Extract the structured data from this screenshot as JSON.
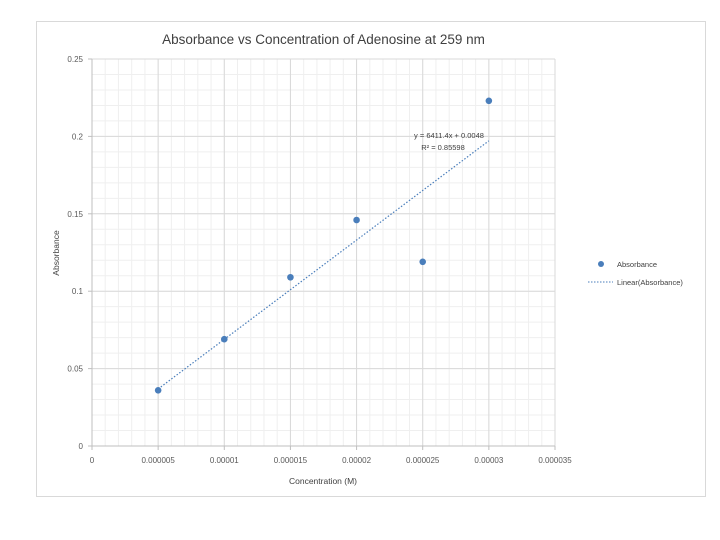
{
  "chart_data": {
    "type": "scatter",
    "title": "Absorbance vs Concentration of Adenosine at 259 nm",
    "xlabel": "Concentration (M)",
    "ylabel": "Absorbance",
    "xlim": [
      0,
      3.5e-05
    ],
    "ylim": [
      0,
      0.25
    ],
    "x_ticks": [
      "0",
      "0.000005",
      "0.00001",
      "0.000015",
      "0.00002",
      "0.000025",
      "0.00003",
      "0.000035"
    ],
    "y_ticks": [
      "0",
      "0.05",
      "0.1",
      "0.15",
      "0.2",
      "0.25"
    ],
    "grid": true,
    "legend_position": "right",
    "series": [
      {
        "name": "Absorbance",
        "color": "#4a7ebb",
        "x": [
          5e-06,
          1e-05,
          1.5e-05,
          2e-05,
          2.5e-05,
          3e-05
        ],
        "y": [
          0.036,
          0.069,
          0.109,
          0.146,
          0.119,
          0.223
        ]
      }
    ],
    "trendline": {
      "name": "Linear(Absorbance)",
      "type": "linear",
      "slope": 6411.4,
      "intercept": 0.0048,
      "equation": "y = 6411.4x + 0.0048",
      "r_squared": "R² = 0.85598",
      "x_range": [
        5e-06,
        3e-05
      ]
    }
  },
  "legend": {
    "items": [
      "Absorbance",
      "Linear(Absorbance)"
    ]
  }
}
